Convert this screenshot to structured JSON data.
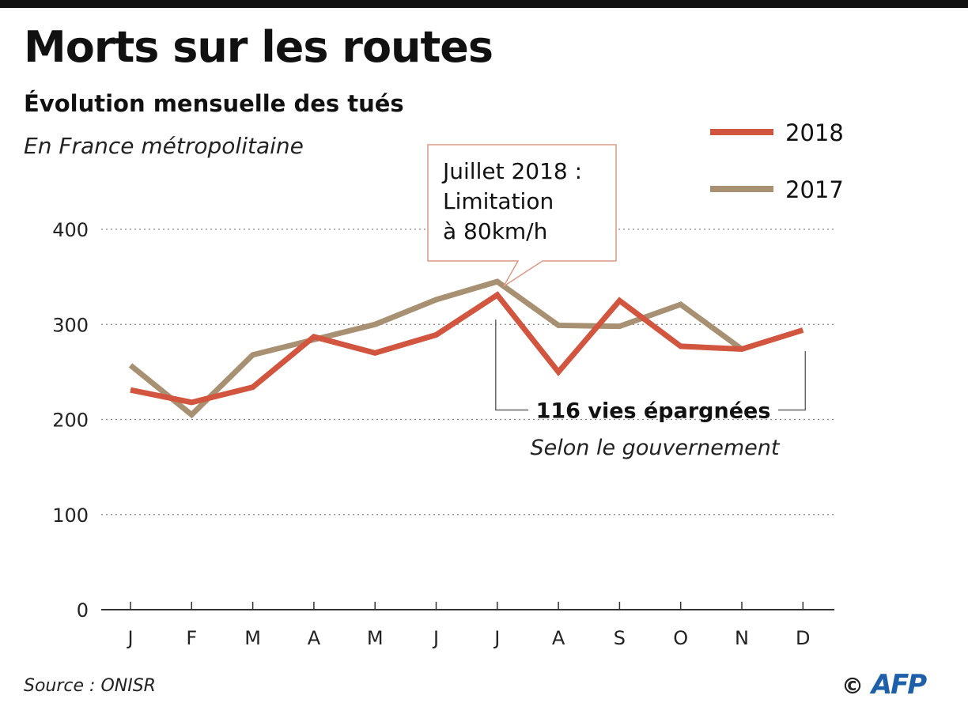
{
  "title": "Morts sur les routes",
  "subtitle": "Évolution mensuelle des tués",
  "region": "En France métropolitaine",
  "source": "Source : ONISR",
  "credit": "©",
  "credit_logo": "AFP",
  "chart_data": {
    "type": "line",
    "title": "Morts sur les routes",
    "categories": [
      "J",
      "F",
      "M",
      "A",
      "M",
      "J",
      "J",
      "A",
      "S",
      "O",
      "N",
      "D"
    ],
    "ylim": [
      0,
      400
    ],
    "yticks": [
      0,
      100,
      200,
      300,
      400
    ],
    "grid": true,
    "legend_placement": "top-right",
    "series": [
      {
        "name": "2018",
        "color": "#d2553f",
        "values": [
          231,
          218,
          234,
          287,
          270,
          289,
          331,
          250,
          325,
          277,
          274,
          294
        ]
      },
      {
        "name": "2017",
        "color": "#a89073",
        "values": [
          257,
          205,
          268,
          284,
          300,
          326,
          345,
          299,
          298,
          321,
          274,
          null
        ]
      }
    ],
    "annotations": {
      "callout": [
        "Juillet 2018 :",
        "Limitation",
        "à 80km/h"
      ],
      "bracket_label": "116 vies épargnées",
      "bracket_sublabel": "Selon le gouvernement"
    }
  }
}
